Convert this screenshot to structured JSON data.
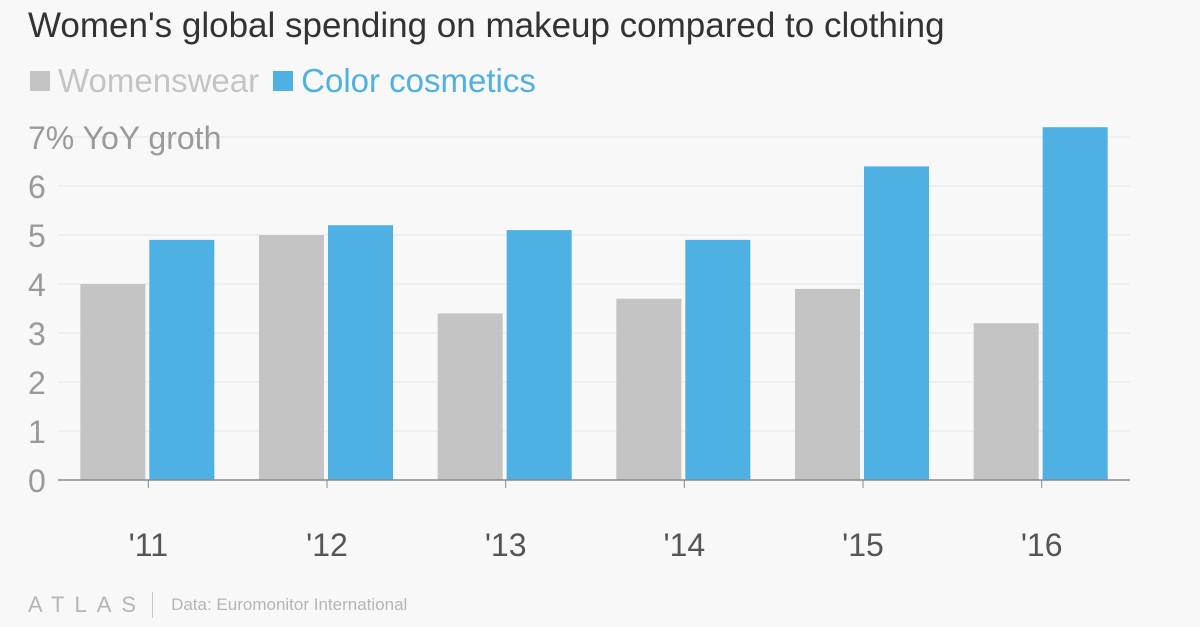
{
  "title": "Women's global spending on makeup compared to clothing",
  "colors": {
    "womenswear": "#c4c4c4",
    "color_cosmetics": "#4fb0e3",
    "axis": "#8a8a8a",
    "grid": "#e6e6e6",
    "text_muted": "#9a9a9a"
  },
  "chart_data": {
    "type": "bar",
    "title": "Women's global spending on makeup compared to clothing",
    "ylabel": "% YoY groth",
    "categories": [
      "'11",
      "'12",
      "'13",
      "'14",
      "'15",
      "'16"
    ],
    "series": [
      {
        "name": "Womenswear",
        "color": "#c4c4c4",
        "values": [
          4.0,
          5.0,
          3.4,
          3.7,
          3.9,
          3.2
        ]
      },
      {
        "name": "Color cosmetics",
        "color": "#4fb0e3",
        "values": [
          4.9,
          5.2,
          5.1,
          4.9,
          6.4,
          7.2
        ]
      }
    ],
    "y_ticks": [
      "0",
      "1",
      "2",
      "3",
      "4",
      "5",
      "6",
      "7% YoY groth"
    ],
    "ylim": [
      0,
      7
    ],
    "grid": true,
    "legend": "top-left"
  },
  "footer": {
    "logo": "ATLAS",
    "source": "Data: Euromonitor International"
  }
}
